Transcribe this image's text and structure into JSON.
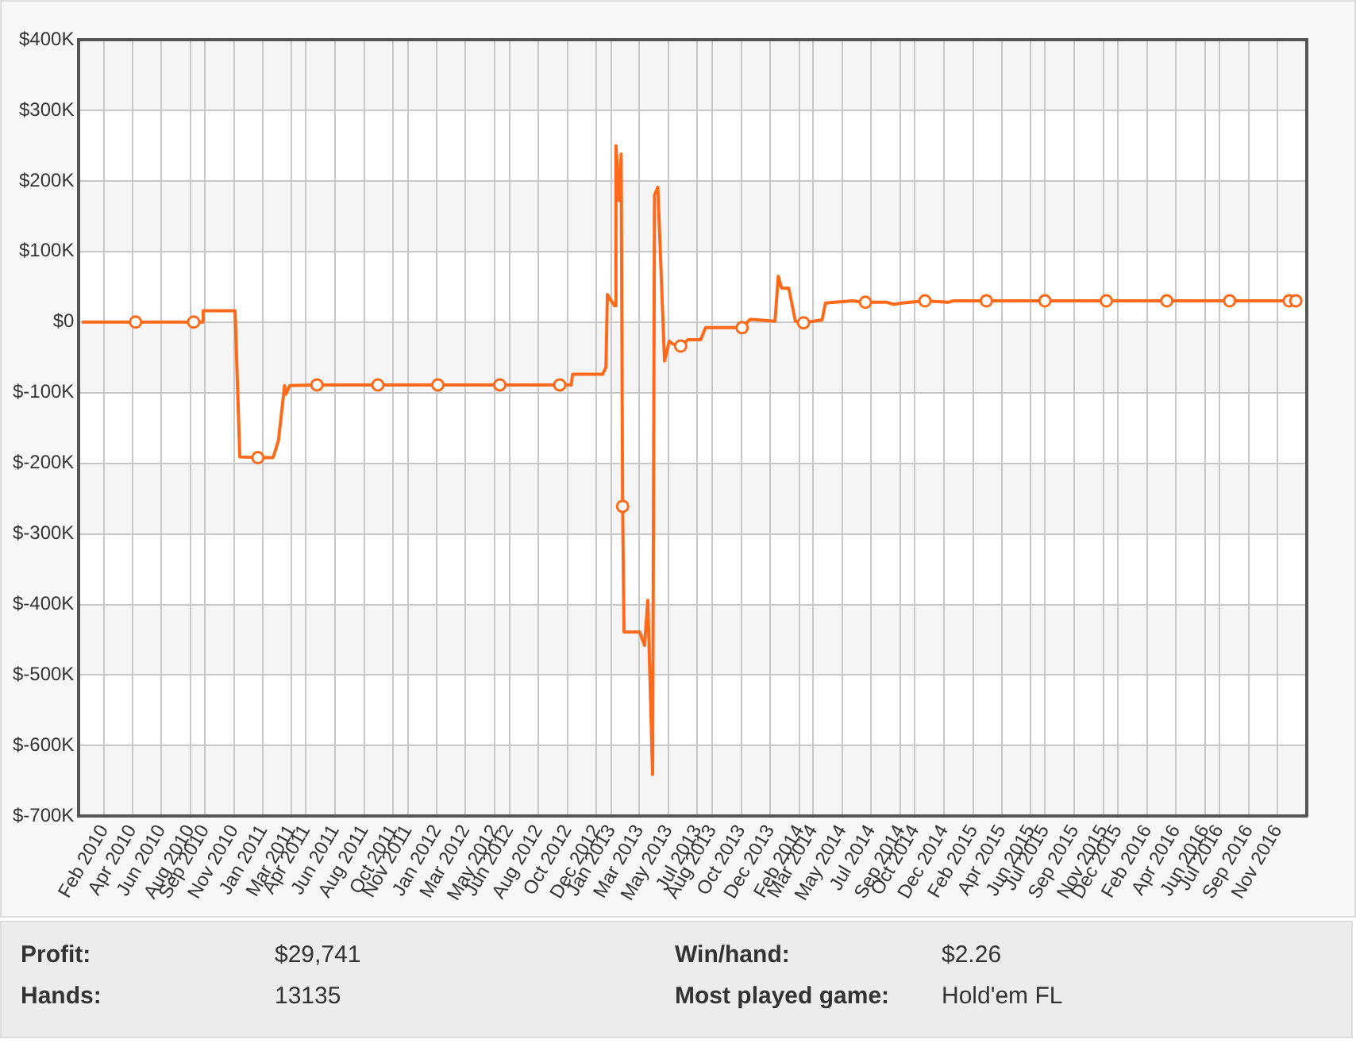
{
  "chart_data": {
    "type": "line",
    "x": [
      "2009-12-16",
      "2010-04-08",
      "2010-08-08",
      "2010-08-25",
      "2010-08-28",
      "2010-11-03",
      "2010-11-13",
      "2010-12-21",
      "2011-01-22",
      "2011-02-02",
      "2011-02-15",
      "2011-02-18",
      "2011-02-26",
      "2011-04-24",
      "2011-08-30",
      "2012-01-03",
      "2012-05-12",
      "2012-09-15",
      "2012-10-09",
      "2012-10-12",
      "2012-12-14",
      "2012-12-21",
      "2012-12-24",
      "2013-01-08",
      "2013-01-11",
      "2013-01-18",
      "2013-01-22",
      "2013-01-25",
      "2013-01-28",
      "2013-03-02",
      "2013-03-12",
      "2013-03-19",
      "2013-03-29",
      "2013-04-02",
      "2013-04-09",
      "2013-04-23",
      "2013-05-03",
      "2013-05-10",
      "2013-05-27",
      "2013-06-11",
      "2013-07-08",
      "2013-07-18",
      "2013-10-03",
      "2013-10-20",
      "2013-12-11",
      "2013-12-18",
      "2013-12-25",
      "2014-01-09",
      "2014-01-23",
      "2014-02-09",
      "2014-03-20",
      "2014-03-27",
      "2014-05-22",
      "2014-06-19",
      "2014-08-03",
      "2014-08-17",
      "2014-09-04",
      "2014-10-22",
      "2014-12-10",
      "2014-12-20",
      "2015-02-28",
      "2015-07-01",
      "2015-11-07",
      "2016-03-13",
      "2016-07-23",
      "2016-11-25",
      "2016-12-09"
    ],
    "series": [
      {
        "color": "#ff6a1a",
        "marker": "none",
        "values": [
          0,
          0,
          0,
          0,
          16,
          16,
          -191,
          -192,
          -192,
          -168,
          -90,
          -102,
          -90,
          -89,
          -89,
          -89,
          -89,
          -89,
          -89,
          -74,
          -74,
          -64,
          39,
          23,
          250,
          172,
          238,
          -261,
          -439,
          -439,
          -458,
          -394,
          -641,
          180,
          191,
          -55,
          -27,
          -31,
          -34,
          -25,
          -25,
          -8,
          -8,
          4,
          1,
          65,
          48,
          48,
          1,
          -1,
          3,
          27,
          30,
          28,
          28,
          25,
          27,
          30,
          28,
          30,
          30,
          30,
          30,
          30,
          30,
          30,
          30
        ]
      },
      {
        "type": "scatter",
        "color": "#ff6a1a",
        "marker": "circle",
        "x": [
          "2010-04-08",
          "2010-08-08",
          "2010-12-21",
          "2011-04-24",
          "2011-08-30",
          "2012-01-03",
          "2012-05-12",
          "2012-09-15",
          "2013-01-25",
          "2013-05-27",
          "2013-10-03",
          "2014-02-09",
          "2014-06-19",
          "2014-10-22",
          "2015-02-28",
          "2015-07-01",
          "2015-11-07",
          "2016-03-13",
          "2016-07-23",
          "2016-11-25",
          "2016-12-09"
        ],
        "values": [
          0,
          0,
          -192,
          -89,
          -89,
          -89,
          -89,
          -89,
          -261,
          -34,
          -8,
          -1,
          28,
          30,
          30,
          30,
          30,
          30,
          30,
          30,
          30
        ]
      }
    ],
    "xlim": [
      "2009-12-10",
      "2017-01-01"
    ],
    "xticks": [
      {
        "value": "2010-02-01",
        "label": "Feb 2010"
      },
      {
        "value": "2010-04-01",
        "label": "Apr 2010"
      },
      {
        "value": "2010-06-01",
        "label": "Jun 2010"
      },
      {
        "value": "2010-08-01",
        "label": "Aug 2010"
      },
      {
        "value": "2010-09-01",
        "label": "Sep 2010"
      },
      {
        "value": "2010-11-01",
        "label": "Nov 2010"
      },
      {
        "value": "2011-01-01",
        "label": "Jan 2011"
      },
      {
        "value": "2011-03-01",
        "label": "Mar 2011"
      },
      {
        "value": "2011-04-01",
        "label": "Apr 2011"
      },
      {
        "value": "2011-06-01",
        "label": "Jun 2011"
      },
      {
        "value": "2011-08-01",
        "label": "Aug 2011"
      },
      {
        "value": "2011-10-01",
        "label": "Oct 2011"
      },
      {
        "value": "2011-11-01",
        "label": "Nov 2011"
      },
      {
        "value": "2012-01-01",
        "label": "Jan 2012"
      },
      {
        "value": "2012-03-01",
        "label": "Mar 2012"
      },
      {
        "value": "2012-05-01",
        "label": "May 2012"
      },
      {
        "value": "2012-06-01",
        "label": "Jun 2012"
      },
      {
        "value": "2012-08-01",
        "label": "Aug 2012"
      },
      {
        "value": "2012-10-01",
        "label": "Oct 2012"
      },
      {
        "value": "2012-12-01",
        "label": "Dec 2012"
      },
      {
        "value": "2013-01-01",
        "label": "Jan 2013"
      },
      {
        "value": "2013-03-01",
        "label": "Mar 2013"
      },
      {
        "value": "2013-05-01",
        "label": "May 2013"
      },
      {
        "value": "2013-07-01",
        "label": "Jul 2013"
      },
      {
        "value": "2013-08-01",
        "label": "Aug 2013"
      },
      {
        "value": "2013-10-01",
        "label": "Oct 2013"
      },
      {
        "value": "2013-12-01",
        "label": "Dec 2013"
      },
      {
        "value": "2014-02-01",
        "label": "Feb 2014"
      },
      {
        "value": "2014-03-01",
        "label": "Mar 2014"
      },
      {
        "value": "2014-05-01",
        "label": "May 2014"
      },
      {
        "value": "2014-07-01",
        "label": "Jul 2014"
      },
      {
        "value": "2014-09-01",
        "label": "Sep 2014"
      },
      {
        "value": "2014-10-01",
        "label": "Oct 2014"
      },
      {
        "value": "2014-12-01",
        "label": "Dec 2014"
      },
      {
        "value": "2015-02-01",
        "label": "Feb 2015"
      },
      {
        "value": "2015-04-01",
        "label": "Apr 2015"
      },
      {
        "value": "2015-06-01",
        "label": "Jun 2015"
      },
      {
        "value": "2015-07-01",
        "label": "Jul 2015"
      },
      {
        "value": "2015-09-01",
        "label": "Sep 2015"
      },
      {
        "value": "2015-11-01",
        "label": "Nov 2015"
      },
      {
        "value": "2015-12-01",
        "label": "Dec 2015"
      },
      {
        "value": "2016-02-01",
        "label": "Feb 2016"
      },
      {
        "value": "2016-04-01",
        "label": "Apr 2016"
      },
      {
        "value": "2016-06-01",
        "label": "Jun 2016"
      },
      {
        "value": "2016-07-01",
        "label": "Jul 2016"
      },
      {
        "value": "2016-09-01",
        "label": "Sep 2016"
      },
      {
        "value": "2016-11-01",
        "label": "Nov 2016"
      }
    ],
    "ylim": [
      -700,
      400
    ],
    "yticks": [
      {
        "value": 400,
        "label": "$400K"
      },
      {
        "value": 300,
        "label": "$300K"
      },
      {
        "value": 200,
        "label": "$200K"
      },
      {
        "value": 100,
        "label": "$100K"
      },
      {
        "value": 0,
        "label": "$0"
      },
      {
        "value": -100,
        "label": "$-100K"
      },
      {
        "value": -200,
        "label": "$-200K"
      },
      {
        "value": -300,
        "label": "$-300K"
      },
      {
        "value": -400,
        "label": "$-400K"
      },
      {
        "value": -500,
        "label": "$-500K"
      },
      {
        "value": -600,
        "label": "$-600K"
      },
      {
        "value": -700,
        "label": "$-700K"
      }
    ],
    "grid": true,
    "line_style": "solid",
    "annotations": [
      "Profit:",
      "$29,741",
      "Win/hand:",
      "$2.26",
      "Hands:",
      "13135",
      "Most played game:",
      "Hold'em FL"
    ]
  }
}
